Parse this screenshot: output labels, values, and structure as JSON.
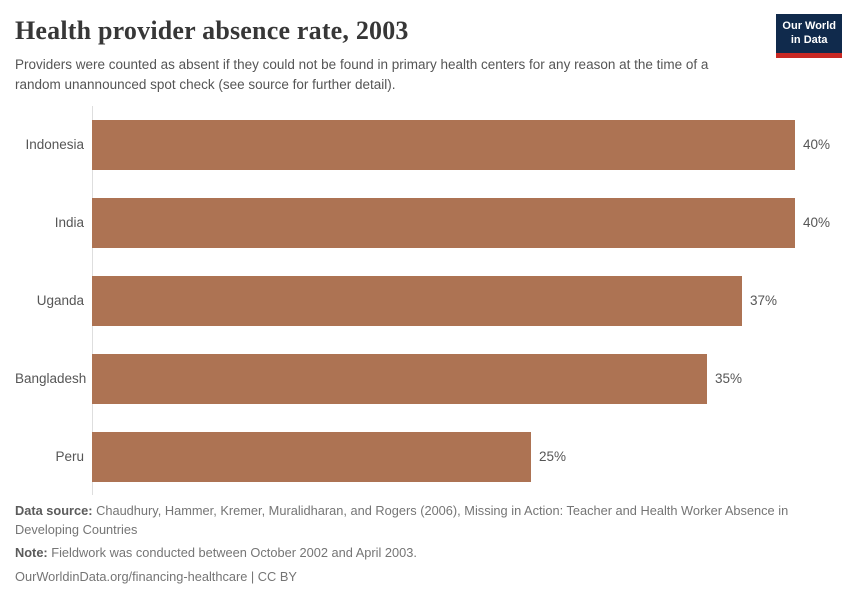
{
  "header": {
    "title": "Health provider absence rate, 2003",
    "subtitle": "Providers were counted as absent if they could not be found in primary health centers for any reason at the time of a random unannounced spot check (see source for further detail).",
    "logo": {
      "line1": "Our World",
      "line2": "in Data",
      "bg_color": "#102a4c",
      "accent_color": "#c82823"
    }
  },
  "chart_data": {
    "type": "bar",
    "orientation": "horizontal",
    "title": "Health provider absence rate, 2003",
    "categories": [
      "Indonesia",
      "India",
      "Uganda",
      "Bangladesh",
      "Peru"
    ],
    "values": [
      40,
      40,
      37,
      35,
      25
    ],
    "value_labels": [
      "40%",
      "40%",
      "37%",
      "35%",
      "25%"
    ],
    "unit": "%",
    "xlabel": "",
    "ylabel": "",
    "xlim": [
      0,
      42
    ],
    "grid": false,
    "legend": "none",
    "bar_color": "#ad7353",
    "axis_color": "#dedede"
  },
  "footer": {
    "source_label": "Data source:",
    "source_text": "Chaudhury, Hammer, Kremer, Muralidharan, and Rogers (2006), Missing in Action: Teacher and Health Worker Absence in Developing Countries",
    "note_label": "Note:",
    "note_text": "Fieldwork was conducted between October 2002 and April 2003.",
    "url_text": "OurWorldinData.org/financing-healthcare | CC BY"
  }
}
